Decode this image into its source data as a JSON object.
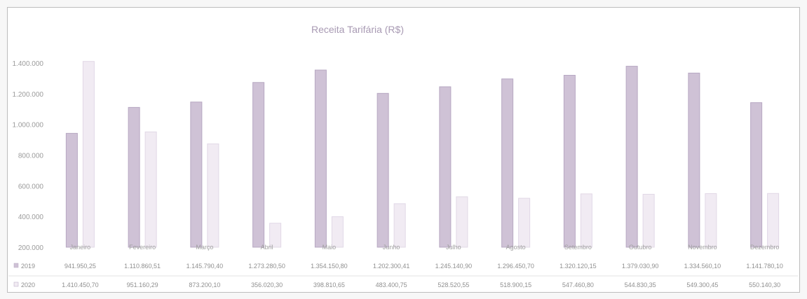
{
  "chart_data": {
    "type": "bar",
    "title": "Receita Tarifária (R$)",
    "categories": [
      "Janeiro",
      "Fevereiro",
      "Março",
      "Abril",
      "Maio",
      "Junho",
      "Julho",
      "Agosto",
      "Setembro",
      "Outubro",
      "Novembro",
      "Dezembro"
    ],
    "series": [
      {
        "name": "2019",
        "values": [
          941950,
          1110860,
          1145790,
          1273280,
          1354150,
          1202300,
          1245140,
          1296450,
          1320120,
          1379030,
          1334560,
          1141780
        ],
        "value_labels": [
          "941.950,25",
          "1.110.860,51",
          "1.145.790,40",
          "1.273.280,50",
          "1.354.150,80",
          "1.202.300,41",
          "1.245.140,90",
          "1.296.450,70",
          "1.320.120,15",
          "1.379.030,90",
          "1.334.560,10",
          "1.141.780,10"
        ],
        "color": "#cfc2d6"
      },
      {
        "name": "2020",
        "values": [
          1410450,
          951160,
          873200,
          356020,
          398810,
          483400,
          528520,
          518900,
          547460,
          544830,
          549300,
          550140
        ],
        "value_labels": [
          "1.410.450,70",
          "951.160,29",
          "873.200,10",
          "356.020,30",
          "398.810,65",
          "483.400,75",
          "528.520,55",
          "518.900,15",
          "547.460,80",
          "544.830,35",
          "549.300,45",
          "550.140,30"
        ],
        "color": "#f1ebf3"
      }
    ],
    "y_ticks": [
      200000,
      400000,
      600000,
      800000,
      1000000,
      1200000,
      1400000
    ],
    "y_tick_labels": [
      "200.000",
      "400.000",
      "600.000",
      "800.000",
      "1.000.000",
      "1.200.000",
      "1.400.000"
    ],
    "ylim": [
      200000,
      1400000
    ],
    "grid": false,
    "legend": "data-table-below"
  }
}
